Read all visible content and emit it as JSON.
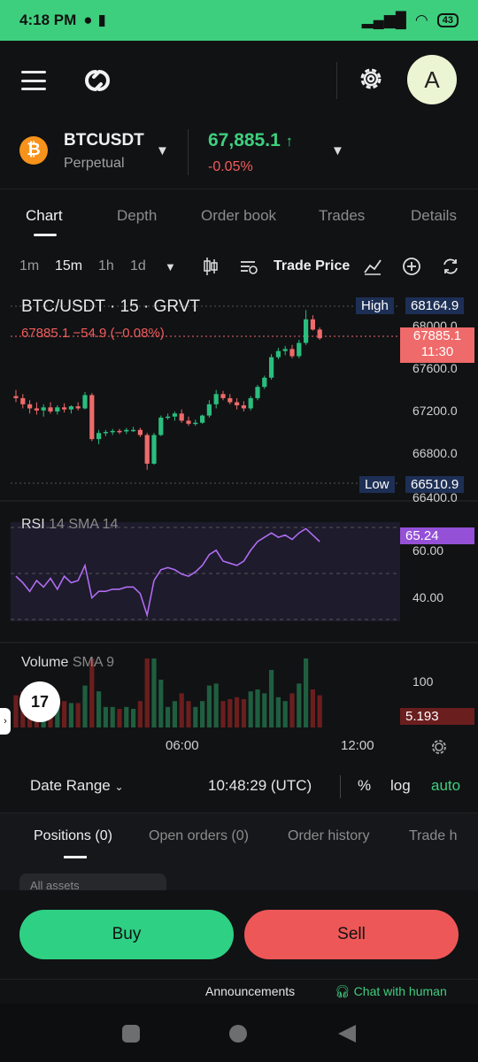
{
  "status": {
    "time": "4:18 PM",
    "battery": "43"
  },
  "header": {
    "avatar_letter": "A"
  },
  "ticker": {
    "symbol": "BTCUSDT",
    "type": "Perpetual",
    "price": "67,885.1",
    "arrow": "↑",
    "change_pct": "-0.05%",
    "coin_glyph": "₿"
  },
  "tabs": [
    "Chart",
    "Depth",
    "Order book",
    "Trades",
    "Details"
  ],
  "toolbar": {
    "intervals": [
      "1m",
      "15m",
      "1h",
      "1d"
    ],
    "selected": "15m",
    "trade_price": "Trade Price"
  },
  "chart": {
    "title": "BTC/USDT · 15 · GRVT",
    "last_line": "67885.1  −54.9 (−0.08%)",
    "high_label": "High",
    "high_value": "68164.9",
    "low_label": "Low",
    "low_value": "66510.9",
    "price_tag": "67885.1",
    "countdown": "11:30",
    "price_ticks": [
      "68000.0",
      "67600.0",
      "67200.0",
      "66800.0",
      "66400.0"
    ],
    "rsi_label": "RSI",
    "rsi_params": "14 SMA 14",
    "rsi_value": "65.24",
    "rsi_ticks": [
      "60.00",
      "40.00"
    ],
    "volume_label": "Volume",
    "volume_params": "SMA 9",
    "volume_tick": "100",
    "volume_value": "5.193",
    "time_ticks": [
      "06:00",
      "12:00"
    ],
    "tv_logo": "17"
  },
  "chart_data": {
    "type": "candlestick",
    "title": "BTC/USDT · 15 · GRVT",
    "ylim": [
      66400,
      68250
    ],
    "candles": [
      [
        67320,
        67380,
        67260,
        67300
      ],
      [
        67300,
        67340,
        67200,
        67240
      ],
      [
        67240,
        67280,
        67150,
        67200
      ],
      [
        67200,
        67260,
        67140,
        67180
      ],
      [
        67180,
        67240,
        67120,
        67210
      ],
      [
        67210,
        67260,
        67150,
        67170
      ],
      [
        67170,
        67230,
        67140,
        67210
      ],
      [
        67210,
        67250,
        67160,
        67190
      ],
      [
        67190,
        67230,
        67150,
        67220
      ],
      [
        67220,
        67260,
        67180,
        67200
      ],
      [
        67200,
        67360,
        67190,
        67330
      ],
      [
        67330,
        67350,
        66880,
        66900
      ],
      [
        66900,
        66990,
        66850,
        66960
      ],
      [
        66960,
        66990,
        66930,
        66970
      ],
      [
        66970,
        67000,
        66940,
        66980
      ],
      [
        66980,
        67000,
        66950,
        66975
      ],
      [
        66975,
        67010,
        66950,
        66990
      ],
      [
        66990,
        67020,
        66970,
        66990
      ],
      [
        66990,
        67010,
        66920,
        66940
      ],
      [
        66940,
        66960,
        66600,
        66660
      ],
      [
        66660,
        66960,
        66650,
        66940
      ],
      [
        66940,
        67130,
        66930,
        67110
      ],
      [
        67110,
        67150,
        67090,
        67120
      ],
      [
        67120,
        67170,
        67080,
        67150
      ],
      [
        67150,
        67190,
        67060,
        67080
      ],
      [
        67080,
        67120,
        67030,
        67050
      ],
      [
        67050,
        67090,
        67030,
        67060
      ],
      [
        67060,
        67140,
        67050,
        67130
      ],
      [
        67130,
        67280,
        67110,
        67240
      ],
      [
        67240,
        67380,
        67200,
        67340
      ],
      [
        67340,
        67370,
        67280,
        67300
      ],
      [
        67300,
        67340,
        67240,
        67260
      ],
      [
        67260,
        67300,
        67190,
        67230
      ],
      [
        67230,
        67270,
        67170,
        67200
      ],
      [
        67200,
        67320,
        67180,
        67300
      ],
      [
        67300,
        67430,
        67280,
        67410
      ],
      [
        67410,
        67520,
        67390,
        67500
      ],
      [
        67500,
        67730,
        67480,
        67700
      ],
      [
        67700,
        67790,
        67680,
        67760
      ],
      [
        67760,
        67810,
        67720,
        67780
      ],
      [
        67780,
        67820,
        67690,
        67710
      ],
      [
        67710,
        67870,
        67690,
        67840
      ],
      [
        67840,
        68160,
        67820,
        68070
      ],
      [
        68070,
        68110,
        67960,
        67970
      ],
      [
        67970,
        67990,
        67870,
        67885
      ]
    ],
    "rsi": [
      50,
      47,
      43,
      48,
      45,
      49,
      44,
      50,
      47,
      48,
      55,
      40,
      43,
      43,
      44,
      44,
      45,
      45,
      42,
      32,
      48,
      53,
      54,
      53,
      51,
      50,
      52,
      55,
      60,
      62,
      57,
      56,
      55,
      57,
      62,
      66,
      68,
      70,
      68,
      69,
      67,
      70,
      72,
      69,
      66
    ]
  }
}
